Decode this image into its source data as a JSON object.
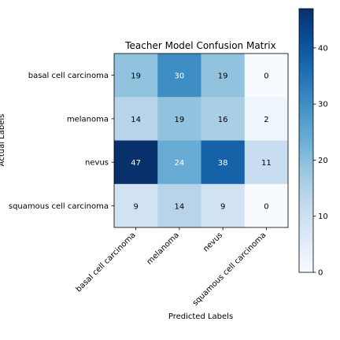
{
  "chart_data": {
    "type": "heatmap",
    "title": "Teacher Model Confusion Matrix",
    "xlabel": "Predicted Labels",
    "ylabel": "Actual Labels",
    "x_categories": [
      "basal cell carcinoma",
      "melanoma",
      "nevus",
      "squamous cell carcinoma"
    ],
    "y_categories": [
      "basal cell carcinoma",
      "melanoma",
      "nevus",
      "squamous cell carcinoma"
    ],
    "values": [
      [
        19,
        30,
        19,
        0
      ],
      [
        14,
        19,
        16,
        2
      ],
      [
        47,
        24,
        38,
        11
      ],
      [
        9,
        14,
        9,
        0
      ]
    ],
    "colorbar": {
      "min": 0,
      "max": 47,
      "ticks": [
        0,
        10,
        20,
        30,
        40
      ],
      "colormap": "Blues"
    },
    "colors": {
      "text_light": "#ffffff",
      "text_dark": "#000000",
      "axis": "#000000"
    }
  }
}
